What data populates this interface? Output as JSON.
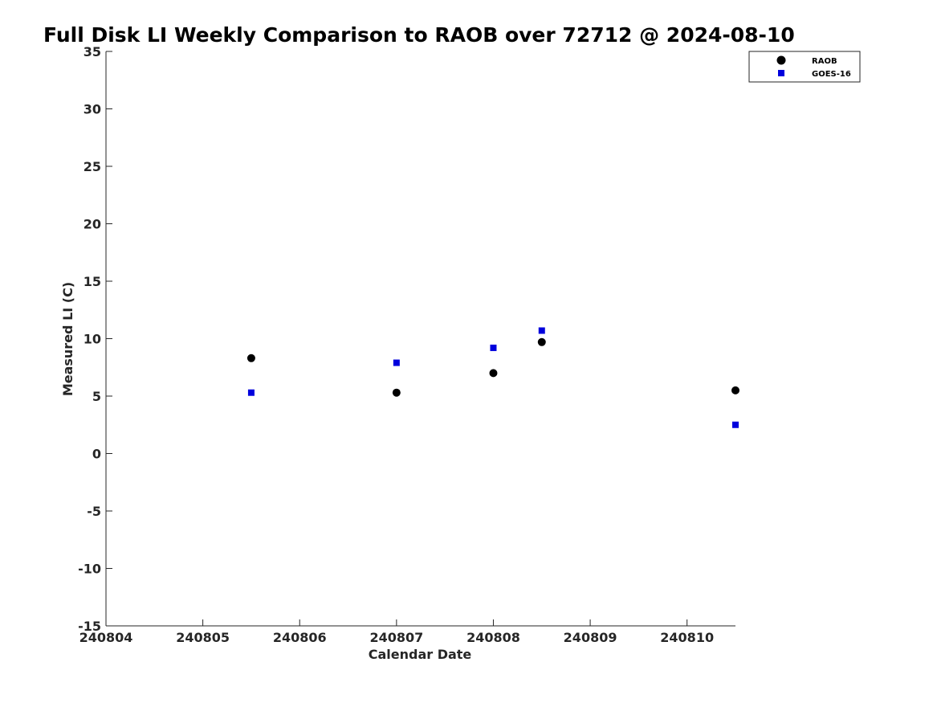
{
  "chart_data": {
    "type": "scatter",
    "title": "Full Disk LI Weekly Comparison to RAOB over 72712 @ 2024-08-10",
    "xlabel": "Calendar Date",
    "ylabel": "Measured LI (C)",
    "xlim": [
      240804,
      240810.5
    ],
    "ylim": [
      -15,
      35
    ],
    "x_ticks": [
      "240804",
      "240805",
      "240806",
      "240807",
      "240808",
      "240809",
      "240810"
    ],
    "y_ticks": [
      "35",
      "30",
      "25",
      "20",
      "15",
      "10",
      "5",
      "0",
      "-5",
      "-10",
      "-15"
    ],
    "legend_position": "top-right",
    "grid": false,
    "series": [
      {
        "name": "RAOB",
        "color": "#000000",
        "marker": "circle",
        "points": [
          {
            "x": 240805.5,
            "y": 8.3
          },
          {
            "x": 240807.0,
            "y": 5.3
          },
          {
            "x": 240808.0,
            "y": 7.0
          },
          {
            "x": 240808.5,
            "y": 9.7
          },
          {
            "x": 240810.5,
            "y": 5.5
          }
        ]
      },
      {
        "name": "GOES-16",
        "color": "#0000dd",
        "marker": "square",
        "points": [
          {
            "x": 240805.5,
            "y": 5.3
          },
          {
            "x": 240807.0,
            "y": 7.9
          },
          {
            "x": 240808.0,
            "y": 9.2
          },
          {
            "x": 240808.5,
            "y": 10.7
          },
          {
            "x": 240810.5,
            "y": 2.5
          }
        ]
      }
    ]
  }
}
